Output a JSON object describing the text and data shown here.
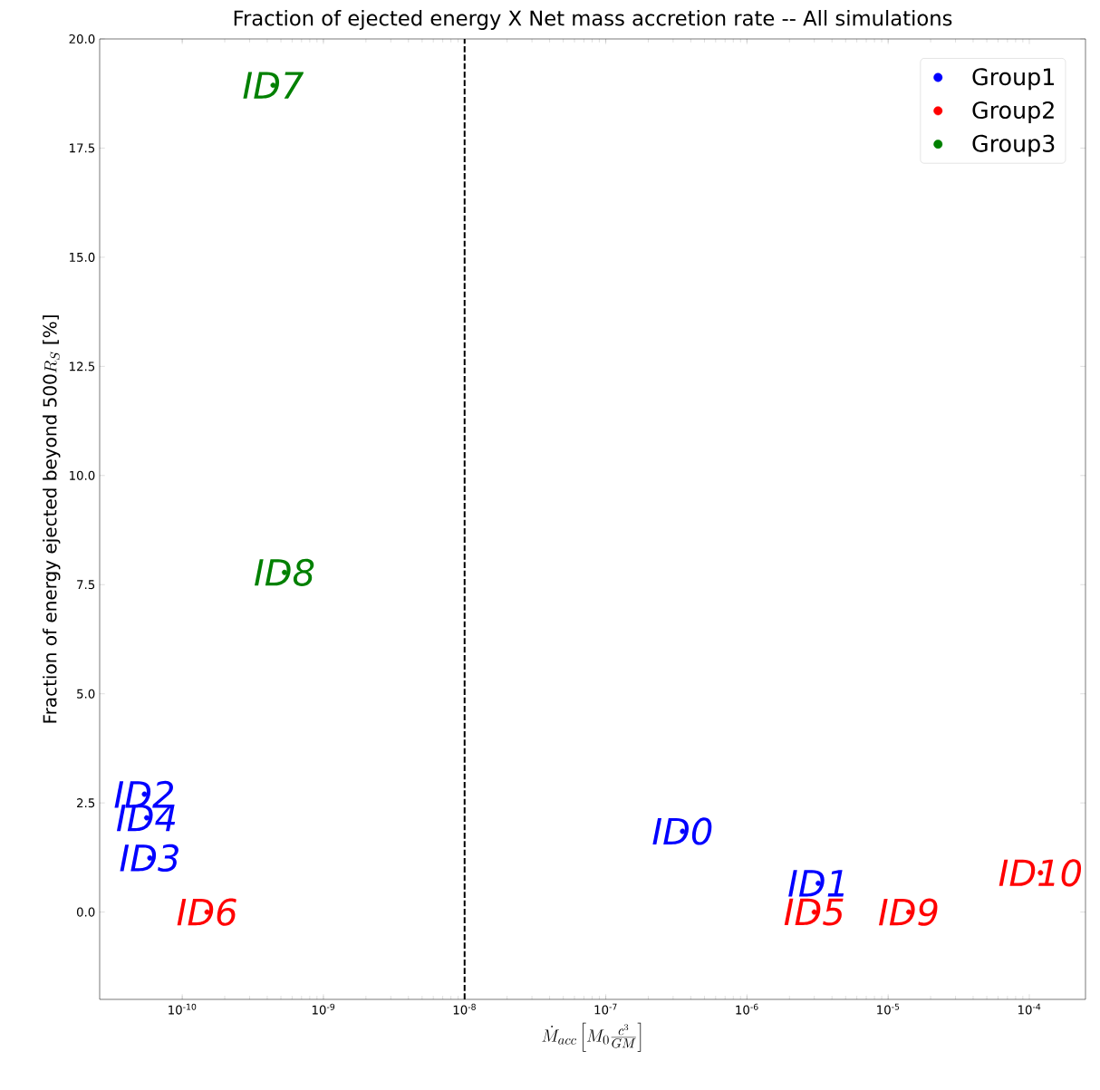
{
  "chart_data": {
    "type": "scatter",
    "title": "Fraction of ejected energy X Net mass accretion rate -- All simulations",
    "xlabel": "\\dot{M}_{acc}\\left[M_0\\frac{c^3}{GM}\\right]",
    "ylabel": "\\mbox{Fraction of energy ejected beyond 500}R_S\\mbox{ [\\%]}",
    "log": "x",
    "xlim": [
      2.6e-11,
      0.00025
    ],
    "xticks": [
      {
        "value": 1e-10,
        "label": "10$^{-10}$"
      },
      {
        "value": 1e-09,
        "label": "10$^{-9}$"
      },
      {
        "value": 1e-08,
        "label": "10$^{-8}$"
      },
      {
        "value": 1e-07,
        "label": "10$^{-7}$"
      },
      {
        "value": 1e-06,
        "label": "10$^{-6}$"
      },
      {
        "value": 1e-05,
        "label": "10$^{-5}$"
      },
      {
        "value": 0.0001,
        "label": "10$^{-4}$"
      }
    ],
    "ylim": [
      -2,
      20
    ],
    "yticks": [
      {
        "value": 0,
        "label": "0.0"
      },
      {
        "value": 2.5,
        "label": "2.5"
      },
      {
        "value": 5,
        "label": "5.0"
      },
      {
        "value": 7.5,
        "label": "7.5"
      },
      {
        "value": 10,
        "label": "10.0"
      },
      {
        "value": 12.5,
        "label": "12.5"
      },
      {
        "value": 15,
        "label": "15.0"
      },
      {
        "value": 17.5,
        "label": "17.5"
      },
      {
        "value": 20,
        "label": "20.0"
      }
    ],
    "marker": "circle",
    "legend": "top right",
    "grid": false,
    "ref_lines": [
      {
        "axis": "x",
        "value": 1e-08,
        "color": "#000000",
        "line_style": "dashed"
      }
    ],
    "series": [
      {
        "name": "Group1",
        "color": "#0000ff",
        "x": [
          3.5e-07,
          3.2e-06,
          5.4e-11,
          5.6e-11,
          5.9e-11
        ],
        "values": [
          1.85,
          0.66,
          2.7,
          2.16,
          1.24
        ],
        "value_labels": [
          "ID0",
          "ID1",
          "ID2",
          "ID4",
          "ID3"
        ]
      },
      {
        "name": "Group2",
        "color": "#ff0000",
        "x": [
          3e-06,
          1.5e-10,
          1.4e-05,
          0.00012
        ],
        "values": [
          0,
          0,
          0,
          0.9
        ],
        "value_labels": [
          "ID5",
          "ID6",
          "ID9",
          "ID10"
        ]
      },
      {
        "name": "Group3",
        "color": "#008000",
        "x": [
          4.4e-10,
          5.3e-10
        ],
        "values": [
          18.94,
          7.78
        ],
        "value_labels": [
          "ID7",
          "ID8"
        ]
      }
    ]
  }
}
